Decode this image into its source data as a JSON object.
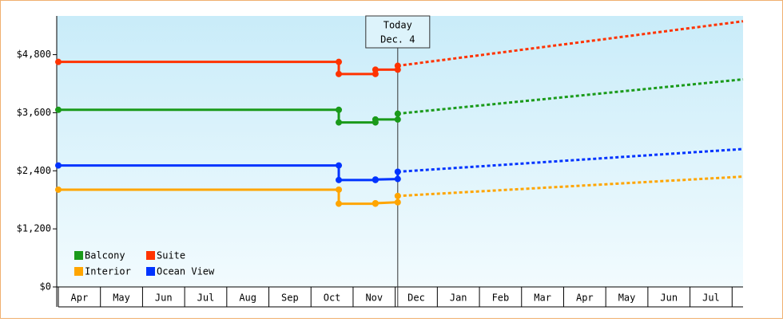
{
  "chart_data": {
    "type": "line",
    "categories": [
      "Apr",
      "May",
      "Jun",
      "Jul",
      "Aug",
      "Sep",
      "Oct",
      "Nov",
      "Dec",
      "Jan",
      "Feb",
      "Mar",
      "Apr",
      "May",
      "Jun",
      "Jul"
    ],
    "xlim": [
      0,
      16.26
    ],
    "ylim": [
      0,
      5600
    ],
    "yticks": [
      {
        "value": 0,
        "label": "$0"
      },
      {
        "value": 1200,
        "label": "$1,200"
      },
      {
        "value": 2400,
        "label": "$2,400"
      },
      {
        "value": 3600,
        "label": "$3,600"
      },
      {
        "value": 4800,
        "label": "$4,800"
      }
    ],
    "annotation": {
      "x": 8.06,
      "lines": [
        "Today",
        "Dec. 4"
      ]
    },
    "legend_position": "lower-left",
    "series": [
      {
        "name": "Balcony",
        "color": "#1a9a1a",
        "x": [
          0,
          6.66,
          6.66,
          7.53,
          7.53,
          8.06,
          8.06
        ],
        "values": [
          3660,
          3660,
          3400,
          3400,
          3460,
          3460,
          3580
        ],
        "projection_x": [
          8.06,
          16.26
        ],
        "projection_values": [
          3580,
          4290
        ]
      },
      {
        "name": "Suite",
        "color": "#ff3300",
        "x": [
          0,
          6.66,
          6.66,
          7.53,
          7.53,
          8.06,
          8.06
        ],
        "values": [
          4650,
          4650,
          4400,
          4400,
          4490,
          4490,
          4570
        ],
        "projection_x": [
          8.06,
          16.26
        ],
        "projection_values": [
          4570,
          5490
        ]
      },
      {
        "name": "Interior",
        "color": "#ffa500",
        "x": [
          0,
          6.66,
          6.66,
          7.53,
          7.53,
          8.06,
          8.06
        ],
        "values": [
          2010,
          2010,
          1720,
          1720,
          1730,
          1750,
          1880
        ],
        "projection_x": [
          8.06,
          16.26
        ],
        "projection_values": [
          1880,
          2280
        ]
      },
      {
        "name": "Ocean View",
        "color": "#0033ff",
        "x": [
          0,
          6.66,
          6.66,
          7.53,
          7.53,
          8.06,
          8.06
        ],
        "values": [
          2510,
          2510,
          2210,
          2210,
          2220,
          2230,
          2380
        ],
        "projection_x": [
          8.06,
          16.26
        ],
        "projection_values": [
          2380,
          2850
        ]
      }
    ]
  }
}
